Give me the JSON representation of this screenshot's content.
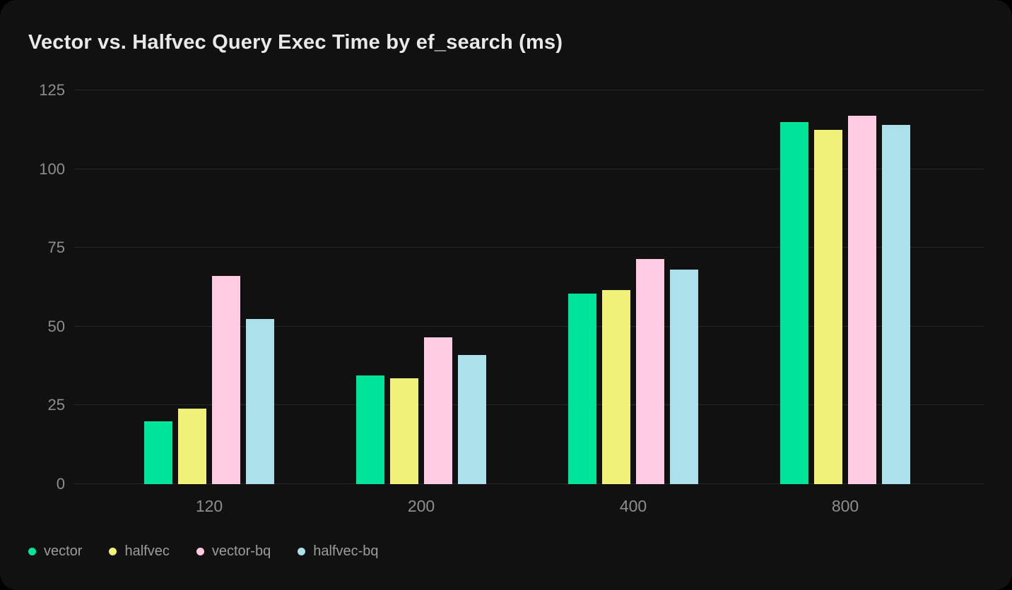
{
  "title": "Vector vs. Halfvec Query Exec Time by ef_search (ms)",
  "chart_data": {
    "type": "bar",
    "title": "Vector vs. Halfvec Query Exec Time by ef_search (ms)",
    "xlabel": "",
    "ylabel": "",
    "categories": [
      "120",
      "200",
      "400",
      "800"
    ],
    "series": [
      {
        "name": "vector",
        "color": "#00E599",
        "values": [
          20,
          34.5,
          60.5,
          115
        ]
      },
      {
        "name": "halfvec",
        "color": "#EFF179",
        "values": [
          24,
          33.5,
          61.5,
          112.5
        ]
      },
      {
        "name": "vector-bq",
        "color": "#FFCBE2",
        "values": [
          66,
          46.5,
          71.5,
          117
        ]
      },
      {
        "name": "halfvec-bq",
        "color": "#ACE0EB",
        "values": [
          52.5,
          41,
          68,
          114
        ]
      }
    ],
    "y_ticks": [
      0,
      25,
      50,
      75,
      100,
      125
    ],
    "ylim": [
      0,
      125
    ],
    "grid": true,
    "legend_position": "bottom-left"
  },
  "colors": {
    "page_background": "#000000",
    "card_background": "#111111",
    "gridline": "#272727",
    "title_text": "#E9E9E9",
    "axis_text": "#8E8E8E",
    "legend_text": "#9C9C9C"
  }
}
